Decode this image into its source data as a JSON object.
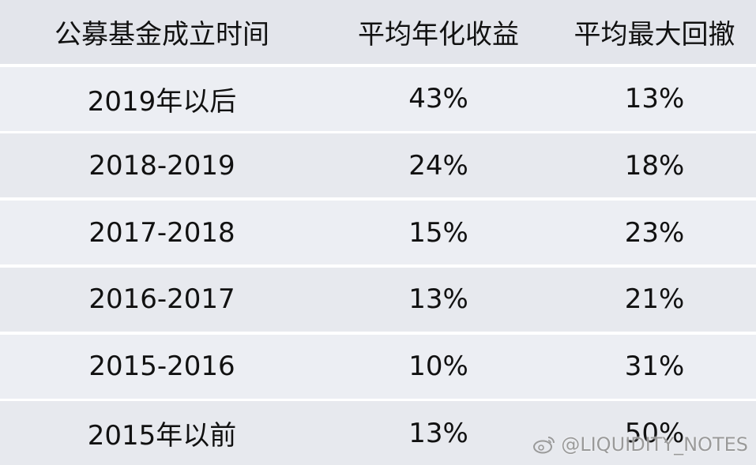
{
  "table": {
    "header": [
      "公募基金成立时间",
      "平均年化收益",
      "平均最大回撤"
    ],
    "rows": [
      [
        "2019年以后",
        "43%",
        "13%"
      ],
      [
        "2018-2019",
        "24%",
        "18%"
      ],
      [
        "2017-2018",
        "15%",
        "23%"
      ],
      [
        "2016-2017",
        "13%",
        "21%"
      ],
      [
        "2015-2016",
        "10%",
        "31%"
      ],
      [
        "2015年以前",
        "13%",
        "50%"
      ]
    ]
  },
  "watermark": "@LIQUIDITY_NOTES"
}
